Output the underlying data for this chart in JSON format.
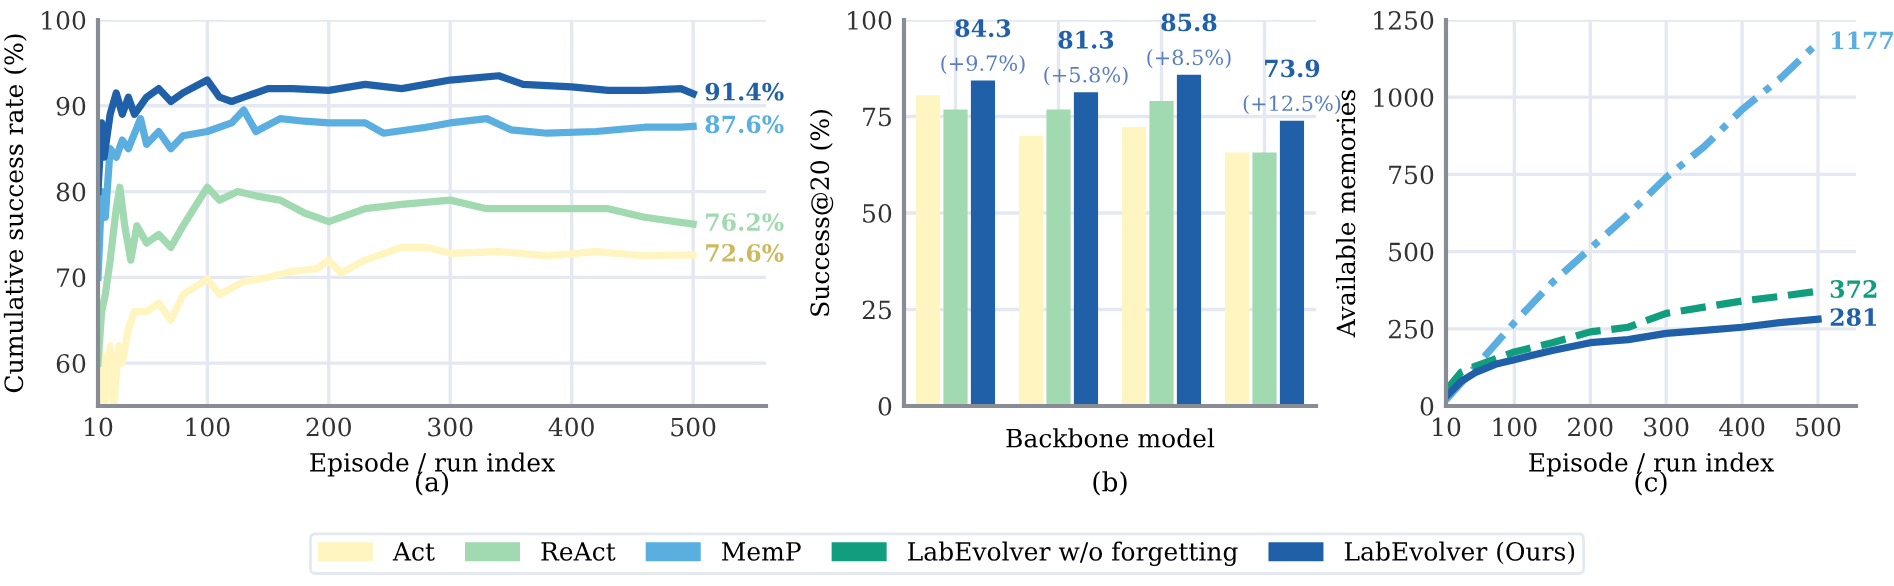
{
  "chart_data": [
    {
      "type": "line",
      "title": "(a)",
      "xlabel": "Episode / run index",
      "ylabel": "Cumulative success rate (%)",
      "xlim": [
        10,
        560
      ],
      "ylim": [
        55,
        100
      ],
      "xticks": [
        10,
        100,
        200,
        300,
        400,
        500
      ],
      "yticks": [
        60,
        70,
        80,
        90,
        100
      ],
      "grid": true,
      "legend": "bottom",
      "line_style": "solid",
      "series": [
        {
          "name": "Act",
          "color": "#fff5c0",
          "x": [
            10,
            13,
            16,
            20,
            23,
            27,
            30,
            35,
            40,
            50,
            60,
            70,
            80,
            100,
            110,
            130,
            150,
            170,
            190,
            200,
            210,
            230,
            260,
            280,
            300,
            340,
            380,
            420,
            460,
            500
          ],
          "values": [
            55,
            61,
            55.5,
            62,
            55,
            62,
            60,
            64,
            66,
            66,
            67,
            65,
            68,
            69.8,
            68,
            69.5,
            70,
            70.7,
            71,
            72,
            70.5,
            72,
            73.5,
            73.5,
            72.8,
            73,
            72.5,
            73,
            72.5,
            72.6
          ],
          "value_labels": [
            null,
            null,
            null,
            null,
            null,
            null,
            null,
            null,
            null,
            null,
            null,
            null,
            null,
            null,
            null,
            null,
            null,
            null,
            null,
            null,
            null,
            null,
            null,
            null,
            null,
            null,
            null,
            null,
            null,
            "72.6%"
          ]
        },
        {
          "name": "ReAct",
          "color": "#a1d9b0",
          "x": [
            10,
            13,
            16,
            20,
            25,
            28,
            32,
            37,
            42,
            50,
            60,
            70,
            80,
            100,
            110,
            125,
            140,
            160,
            180,
            200,
            230,
            260,
            300,
            330,
            360,
            400,
            430,
            460,
            500
          ],
          "values": [
            60,
            66,
            68,
            72,
            78,
            80.5,
            76,
            72,
            76,
            74,
            75,
            73.5,
            76,
            80.5,
            79,
            80,
            79.5,
            79,
            77.5,
            76.5,
            78,
            78.5,
            79,
            78,
            78,
            78,
            78,
            77,
            76.2
          ],
          "value_labels": [
            null,
            null,
            null,
            null,
            null,
            null,
            null,
            null,
            null,
            null,
            null,
            null,
            null,
            null,
            null,
            null,
            null,
            null,
            null,
            null,
            null,
            null,
            null,
            null,
            null,
            null,
            null,
            null,
            "76.2%"
          ]
        },
        {
          "name": "MemP",
          "color": "#5aaee0",
          "x": [
            10,
            13,
            16,
            20,
            25,
            30,
            35,
            45,
            50,
            60,
            70,
            80,
            100,
            120,
            130,
            140,
            160,
            180,
            200,
            230,
            245,
            280,
            300,
            330,
            350,
            380,
            420,
            460,
            490,
            500
          ],
          "values": [
            70,
            80,
            77,
            85,
            84,
            86,
            85,
            88.5,
            85.5,
            87,
            85,
            86.5,
            87,
            88,
            89.5,
            87,
            88.5,
            88.2,
            88,
            88,
            86.8,
            87.5,
            88,
            88.5,
            87.2,
            86.8,
            87,
            87.5,
            87.5,
            87.6
          ],
          "value_labels": [
            null,
            null,
            null,
            null,
            null,
            null,
            null,
            null,
            null,
            null,
            null,
            null,
            null,
            null,
            null,
            null,
            null,
            null,
            null,
            null,
            null,
            null,
            null,
            null,
            null,
            null,
            null,
            null,
            null,
            "87.6%"
          ]
        },
        {
          "name": "LabEvolver (Ours)",
          "color": "#2060a8",
          "x": [
            10,
            13,
            15,
            20,
            25,
            30,
            35,
            40,
            50,
            60,
            70,
            80,
            100,
            110,
            120,
            130,
            150,
            170,
            200,
            230,
            260,
            300,
            340,
            360,
            400,
            430,
            460,
            490,
            500
          ],
          "values": [
            80,
            88,
            84,
            89,
            91.5,
            89,
            91,
            89,
            91,
            92,
            90.5,
            91.5,
            93,
            91,
            90.5,
            91,
            92,
            92,
            91.8,
            92.5,
            92,
            93,
            93.5,
            92.5,
            92.2,
            91.8,
            91.8,
            92,
            91.4
          ],
          "value_labels": [
            null,
            null,
            null,
            null,
            null,
            null,
            null,
            null,
            null,
            null,
            null,
            null,
            null,
            null,
            null,
            null,
            null,
            null,
            null,
            null,
            null,
            null,
            null,
            null,
            null,
            null,
            null,
            null,
            "91.4%"
          ]
        }
      ]
    },
    {
      "type": "bar",
      "title": "(b)",
      "xlabel": "Backbone model",
      "ylabel": "Success@20 (%)",
      "categories": [
        null,
        null,
        null,
        null
      ],
      "ylim": [
        0,
        100
      ],
      "yticks": [
        0,
        25,
        50,
        75,
        100
      ],
      "grid": true,
      "legend": "bottom",
      "series": [
        {
          "name": "Act",
          "color": "#fff5c0",
          "values": [
            80.5,
            70,
            72.3,
            65.7
          ]
        },
        {
          "name": "ReAct",
          "color": "#a1d9b0",
          "values": [
            76.8,
            76.8,
            79,
            65.7
          ]
        },
        {
          "name": "LabEvolver (Ours)",
          "color": "#2060a8",
          "values": [
            84.3,
            81.3,
            85.8,
            73.9
          ],
          "value_labels": [
            "84.3\n(+9.7%)",
            "81.3\n(+5.8%)",
            "85.8\n(+8.5%)",
            "73.9\n(+12.5%)"
          ]
        }
      ]
    },
    {
      "type": "line",
      "title": "(c)",
      "xlabel": "Episode / run index",
      "ylabel": "Available memories",
      "xlim": [
        10,
        550
      ],
      "ylim": [
        0,
        1250
      ],
      "xticks": [
        10,
        100,
        200,
        300,
        400,
        500
      ],
      "yticks": [
        0,
        250,
        500,
        750,
        1000,
        1250
      ],
      "grid": true,
      "legend": "bottom",
      "series": [
        {
          "name": "MemP",
          "color": "#5aaee0",
          "line_style": "dashdot",
          "x": [
            10,
            50,
            100,
            150,
            200,
            250,
            300,
            350,
            400,
            450,
            500
          ],
          "values": [
            20,
            130,
            270,
            400,
            510,
            620,
            740,
            840,
            960,
            1060,
            1177
          ],
          "value_labels": [
            null,
            null,
            null,
            null,
            null,
            null,
            null,
            null,
            null,
            null,
            "1177"
          ]
        },
        {
          "name": "LabEvolver w/o forgetting",
          "color": "#119e7e",
          "line_style": "dashed",
          "x": [
            10,
            30,
            50,
            100,
            150,
            200,
            250,
            300,
            350,
            400,
            450,
            500
          ],
          "values": [
            50,
            110,
            130,
            175,
            205,
            240,
            255,
            300,
            320,
            340,
            355,
            372
          ],
          "value_labels": [
            null,
            null,
            null,
            null,
            null,
            null,
            null,
            null,
            null,
            null,
            null,
            "372"
          ]
        },
        {
          "name": "LabEvolver (Ours)",
          "color": "#2060a8",
          "line_style": "solid",
          "x": [
            10,
            30,
            50,
            75,
            100,
            150,
            200,
            250,
            300,
            350,
            400,
            450,
            500
          ],
          "values": [
            30,
            80,
            110,
            135,
            150,
            180,
            205,
            215,
            235,
            245,
            255,
            270,
            281
          ],
          "value_labels": [
            null,
            null,
            null,
            null,
            null,
            null,
            null,
            null,
            null,
            null,
            null,
            null,
            "281"
          ]
        }
      ]
    }
  ]
}
